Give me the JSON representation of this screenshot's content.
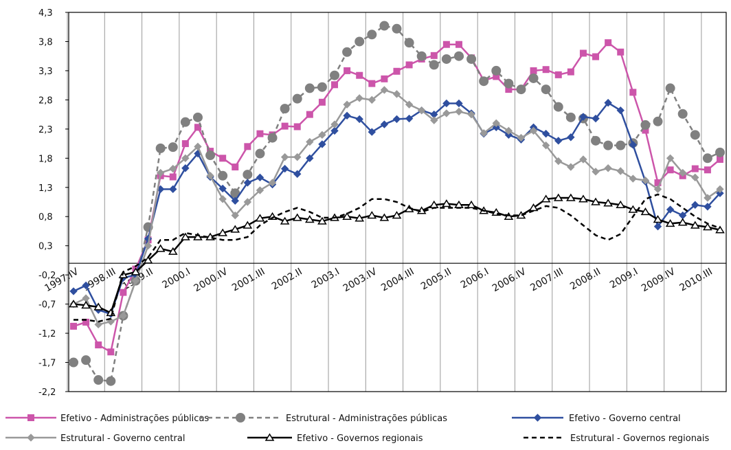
{
  "chart_data": {
    "type": "line",
    "categories": [
      "1997.IV",
      null,
      null,
      "1998.III",
      null,
      null,
      "1999.II",
      null,
      null,
      "2000.I",
      null,
      null,
      "2000.IV",
      null,
      null,
      "2001.III",
      null,
      null,
      "2002.II",
      null,
      null,
      "2003.I",
      null,
      null,
      "2003.IV",
      null,
      null,
      "2004.III",
      null,
      null,
      "2005.II",
      null,
      null,
      "2006.I",
      null,
      null,
      "2006.IV",
      null,
      null,
      "2007.III",
      null,
      null,
      "2008.II",
      null,
      null,
      "2009.I",
      null,
      null,
      "2009.IV",
      null,
      null,
      "2010.III",
      null
    ],
    "ylim": [
      -2.2,
      4.3
    ],
    "yticks": [
      {
        "value": 4.3,
        "label": "4,3"
      },
      {
        "value": 3.8,
        "label": "3,8"
      },
      {
        "value": 3.3,
        "label": "3,3"
      },
      {
        "value": 2.8,
        "label": "2,8"
      },
      {
        "value": 2.3,
        "label": "2,3"
      },
      {
        "value": 1.8,
        "label": "1,8"
      },
      {
        "value": 1.3,
        "label": "1,3"
      },
      {
        "value": 0.8,
        "label": "0,8"
      },
      {
        "value": 0.3,
        "label": "0,3"
      },
      {
        "value": -0.2,
        "label": "-0,2"
      },
      {
        "value": -0.7,
        "label": "-0,7"
      },
      {
        "value": -1.2,
        "label": "-1,2"
      },
      {
        "value": -1.7,
        "label": "-1,7"
      },
      {
        "value": -2.2,
        "label": "-2,2"
      }
    ],
    "grid": true,
    "series": [
      {
        "name": "Efetivo - Administrações públicas",
        "color": "#cc55aa",
        "marker": "square",
        "dash": false,
        "values": [
          -1.08,
          -1.01,
          -1.4,
          -1.52,
          -0.5,
          -0.1,
          0.4,
          1.5,
          1.48,
          2.05,
          2.33,
          1.92,
          1.8,
          1.65,
          2.0,
          2.22,
          2.2,
          2.35,
          2.34,
          2.55,
          2.76,
          3.06,
          3.3,
          3.22,
          3.08,
          3.16,
          3.29,
          3.4,
          3.5,
          3.56,
          3.75,
          3.75,
          3.52,
          3.13,
          3.2,
          2.98,
          2.98,
          3.3,
          3.32,
          3.23,
          3.28,
          3.6,
          3.54,
          3.78,
          3.62,
          2.93,
          2.28,
          1.38,
          1.6,
          1.5,
          1.62,
          1.6,
          1.78
        ]
      },
      {
        "name": "Estrutural - Administrações públicas",
        "color": "#808080",
        "marker": "circle",
        "dash": true,
        "values": [
          -1.7,
          -1.66,
          -2.0,
          -2.02,
          -0.9,
          -0.3,
          0.62,
          1.97,
          1.99,
          2.42,
          2.5,
          1.85,
          1.5,
          1.2,
          1.52,
          1.88,
          2.15,
          2.65,
          2.82,
          3.0,
          3.02,
          3.22,
          3.62,
          3.8,
          3.92,
          4.07,
          4.02,
          3.78,
          3.55,
          3.4,
          3.5,
          3.55,
          3.5,
          3.12,
          3.3,
          3.08,
          2.98,
          3.17,
          2.98,
          2.68,
          2.5,
          2.48,
          2.1,
          2.02,
          2.02,
          2.06,
          2.37,
          2.43,
          3.0,
          2.56,
          2.2,
          1.8,
          1.9
        ]
      },
      {
        "name": "Efetivo - Governo central",
        "color": "#2f4f9f",
        "marker": "diamond",
        "dash": false,
        "values": [
          -0.48,
          -0.38,
          -0.8,
          -0.87,
          -0.25,
          -0.2,
          0.42,
          1.27,
          1.27,
          1.63,
          1.88,
          1.48,
          1.28,
          1.07,
          1.38,
          1.47,
          1.35,
          1.62,
          1.53,
          1.8,
          2.04,
          2.27,
          2.53,
          2.47,
          2.25,
          2.38,
          2.47,
          2.48,
          2.62,
          2.55,
          2.74,
          2.74,
          2.57,
          2.22,
          2.33,
          2.2,
          2.12,
          2.33,
          2.22,
          2.1,
          2.16,
          2.51,
          2.48,
          2.75,
          2.62,
          2.03,
          1.4,
          0.63,
          0.92,
          0.82,
          1.0,
          0.97,
          1.2
        ]
      },
      {
        "name": "Estrutural - Governo central",
        "color": "#999999",
        "marker": "diamond",
        "dash": false,
        "values": [
          -0.7,
          -0.6,
          -1.05,
          -1.0,
          -0.9,
          -0.3,
          0.3,
          1.55,
          1.62,
          1.8,
          2.0,
          1.5,
          1.1,
          0.82,
          1.05,
          1.25,
          1.38,
          1.82,
          1.82,
          2.08,
          2.2,
          2.38,
          2.72,
          2.83,
          2.8,
          2.97,
          2.9,
          2.72,
          2.62,
          2.45,
          2.57,
          2.6,
          2.55,
          2.23,
          2.4,
          2.27,
          2.15,
          2.27,
          2.02,
          1.75,
          1.65,
          1.78,
          1.57,
          1.63,
          1.58,
          1.45,
          1.42,
          1.27,
          1.8,
          1.55,
          1.47,
          1.12,
          1.27
        ]
      },
      {
        "name": "Efetivo - Governos regionais",
        "color": "#000000",
        "marker": "triangle",
        "dash": false,
        "values": [
          -0.7,
          -0.72,
          -0.75,
          -0.85,
          -0.2,
          -0.15,
          0.05,
          0.25,
          0.2,
          0.45,
          0.45,
          0.45,
          0.52,
          0.58,
          0.65,
          0.77,
          0.8,
          0.72,
          0.78,
          0.75,
          0.72,
          0.78,
          0.8,
          0.77,
          0.82,
          0.78,
          0.82,
          0.93,
          0.9,
          1.0,
          1.02,
          1.0,
          1.0,
          0.9,
          0.87,
          0.8,
          0.82,
          0.95,
          1.1,
          1.12,
          1.12,
          1.1,
          1.05,
          1.03,
          1.0,
          0.92,
          0.88,
          0.75,
          0.68,
          0.7,
          0.65,
          0.62,
          0.57
        ]
      },
      {
        "name": "Estrutural - Governos regionais",
        "color": "#000000",
        "marker": "none",
        "dash": true,
        "values": [
          -0.97,
          -0.97,
          -1.0,
          -0.95,
          -0.15,
          -0.05,
          0.1,
          0.4,
          0.4,
          0.52,
          0.48,
          0.44,
          0.4,
          0.4,
          0.45,
          0.65,
          0.78,
          0.88,
          0.95,
          0.88,
          0.78,
          0.78,
          0.85,
          0.95,
          1.1,
          1.1,
          1.05,
          0.95,
          0.88,
          0.95,
          0.95,
          0.95,
          0.95,
          0.9,
          0.85,
          0.82,
          0.82,
          0.9,
          0.98,
          0.95,
          0.82,
          0.65,
          0.48,
          0.4,
          0.5,
          0.8,
          1.1,
          1.18,
          1.1,
          0.95,
          0.8,
          0.68,
          0.6
        ]
      }
    ]
  }
}
